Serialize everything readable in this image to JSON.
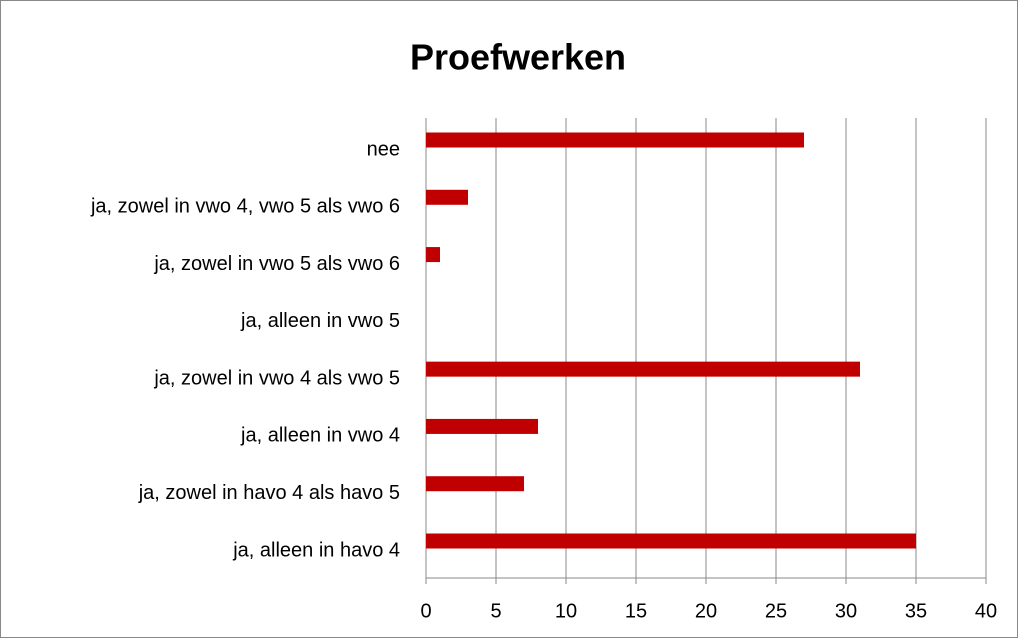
{
  "chart_data": {
    "type": "bar",
    "orientation": "horizontal",
    "title": "Proefwerken",
    "categories": [
      "nee",
      "ja, zowel in vwo 4, vwo 5 als vwo 6",
      "ja, zowel in vwo 5 als vwo 6",
      "ja, alleen in vwo 5",
      "ja, zowel in vwo 4 als vwo 5",
      "ja, alleen in vwo 4",
      "ja, zowel in havo 4 als havo 5",
      "ja, alleen in havo 4"
    ],
    "values": [
      27,
      3,
      1,
      0,
      31,
      8,
      7,
      35
    ],
    "color": "#c00000",
    "xlim": [
      0,
      40
    ],
    "xticks": [
      0,
      5,
      10,
      15,
      20,
      25,
      30,
      35,
      40
    ],
    "grid": true
  }
}
